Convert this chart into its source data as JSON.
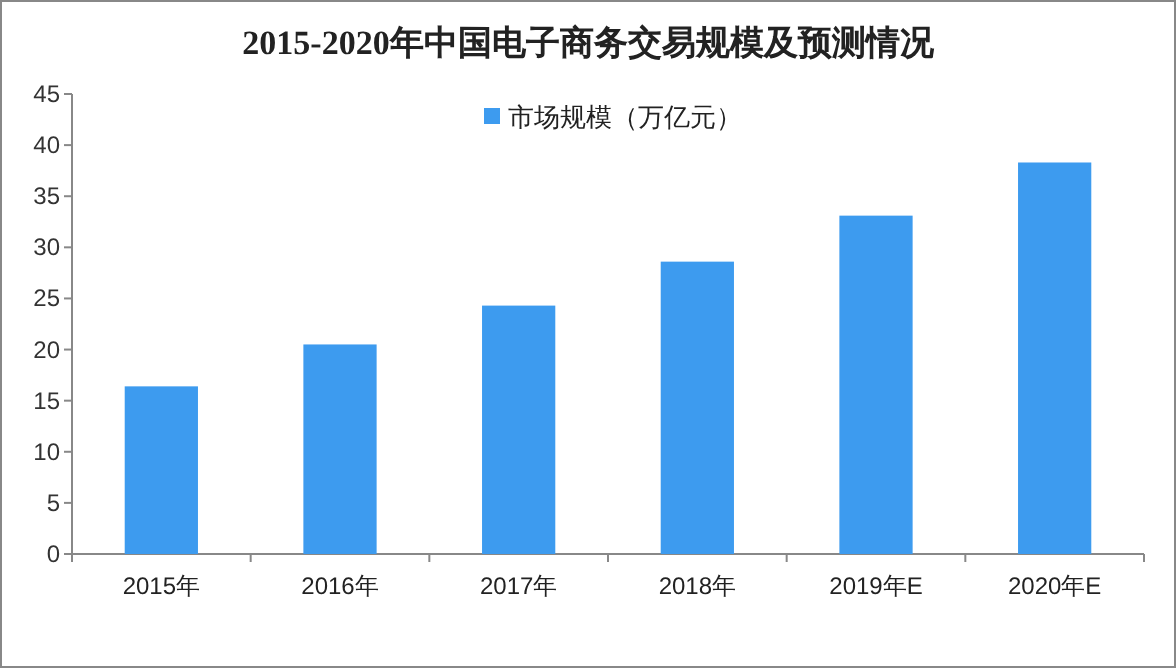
{
  "chart_data": {
    "type": "bar",
    "title": "2015-2020年中国电子商务交易规模及预测情况",
    "categories": [
      "2015年",
      "2016年",
      "2017年",
      "2018年",
      "2019年E",
      "2020年E"
    ],
    "series": [
      {
        "name": "市场规模（万亿元）",
        "color": "#3d9bef",
        "values": [
          16.4,
          20.5,
          24.3,
          28.6,
          33.1,
          38.3
        ]
      }
    ],
    "ylim": [
      0,
      45
    ],
    "yticks": [
      0,
      5,
      10,
      15,
      20,
      25,
      30,
      35,
      40,
      45
    ],
    "grid": false,
    "legend": "top"
  }
}
